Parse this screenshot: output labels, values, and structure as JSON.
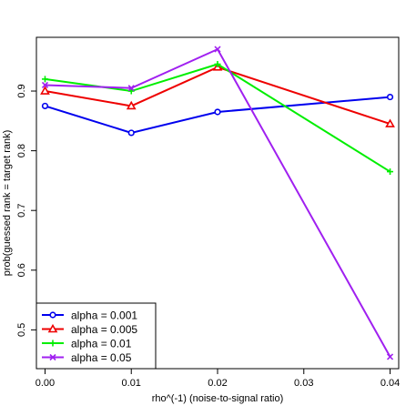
{
  "chart_data": {
    "type": "line",
    "xlabel": "rho^(-1) (noise-to-signal ratio)",
    "ylabel": "prob(guessed rank = target rank)",
    "x": [
      0.0,
      0.01,
      0.02,
      0.04
    ],
    "xlim": [
      -0.001,
      0.041
    ],
    "ylim": [
      0.435,
      0.99
    ],
    "x_ticks": [
      0.0,
      0.01,
      0.02,
      0.03,
      0.04
    ],
    "x_tick_labels": [
      "0.00",
      "0.01",
      "0.02",
      "0.03",
      "0.04"
    ],
    "y_ticks": [
      0.5,
      0.6,
      0.7,
      0.8,
      0.9
    ],
    "y_tick_labels": [
      "0.5",
      "0.6",
      "0.7",
      "0.8",
      "0.9"
    ],
    "legend_position": "bottom-left",
    "series": [
      {
        "name": "alpha = 0.001",
        "color": "#0000ee",
        "marker": "circle",
        "values": [
          0.875,
          0.83,
          0.865,
          0.89
        ]
      },
      {
        "name": "alpha = 0.005",
        "color": "#ee0000",
        "marker": "triangle",
        "values": [
          0.9,
          0.875,
          0.94,
          0.845
        ]
      },
      {
        "name": "alpha = 0.01",
        "color": "#00ee00",
        "marker": "plus",
        "values": [
          0.92,
          0.9,
          0.945,
          0.765
        ]
      },
      {
        "name": "alpha = 0.05",
        "color": "#a020f0",
        "marker": "cross",
        "values": [
          0.91,
          0.905,
          0.97,
          0.455
        ]
      }
    ]
  }
}
